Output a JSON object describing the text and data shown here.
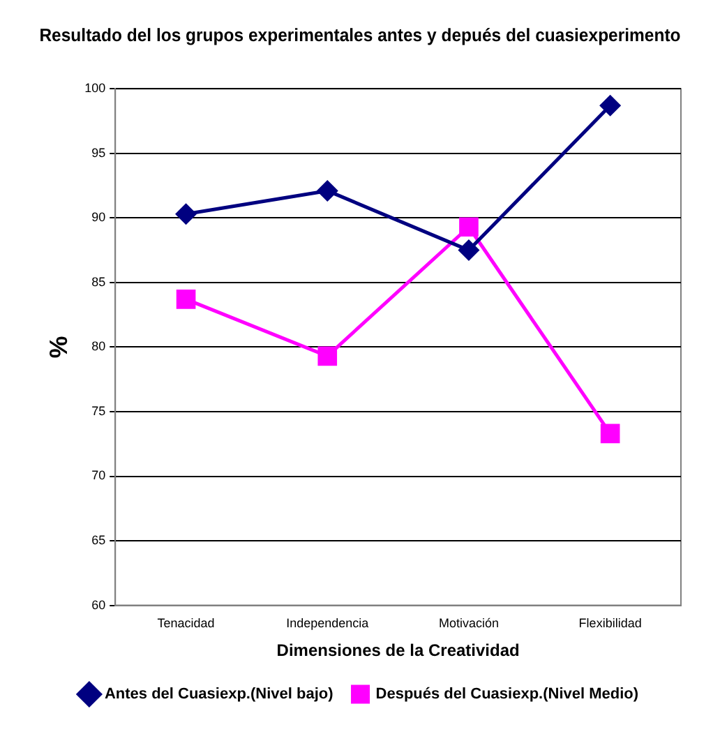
{
  "chart_data": {
    "type": "line",
    "title": "Resultado del los grupos experimentales antes y depués del cuasiexperimento",
    "xlabel": "Dimensiones de la Creatividad",
    "ylabel": "%",
    "categories": [
      "Tenacidad",
      "Independencia",
      "Motivación",
      "Flexibilidad"
    ],
    "series": [
      {
        "name": "Antes del Cuasiexp.(Nivel bajo)",
        "color": "#000080",
        "marker": "diamond",
        "values": [
          90.3,
          92.1,
          87.5,
          98.7
        ]
      },
      {
        "name": "Después del Cuasiexp.(Nivel Medio)",
        "color": "#ff00ff",
        "marker": "square",
        "values": [
          83.7,
          79.3,
          89.3,
          73.3
        ]
      }
    ],
    "ylim": [
      60,
      100
    ],
    "yticks": [
      60,
      65,
      70,
      75,
      80,
      85,
      90,
      95,
      100
    ],
    "grid": "y",
    "legend": "bottom",
    "line_style": "solid"
  }
}
